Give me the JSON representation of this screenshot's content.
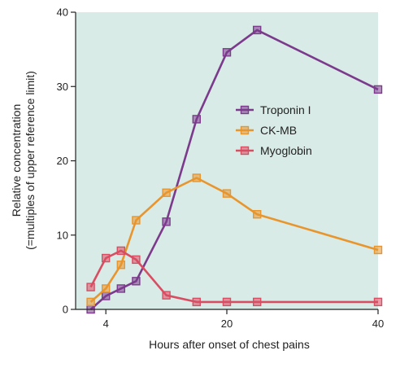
{
  "chart_data": {
    "type": "line",
    "xlabel": "Hours after onset of chest pains",
    "ylabel_line1": "Relative concentration",
    "ylabel_line2": "(=multiples of upper reference limit)",
    "x_ticks": [
      4,
      20,
      40
    ],
    "y_ticks": [
      0,
      10,
      20,
      30,
      40
    ],
    "xlim": [
      0,
      40
    ],
    "ylim": [
      0,
      40
    ],
    "background": "#d9ebe6",
    "legend_position": "center-right",
    "series": [
      {
        "name": "Troponin I",
        "color": "#7b3a8c",
        "points": [
          [
            2,
            0
          ],
          [
            4,
            1.8
          ],
          [
            6,
            2.8
          ],
          [
            8,
            3.8
          ],
          [
            12,
            11.8
          ],
          [
            16,
            25.6
          ],
          [
            20,
            34.6
          ],
          [
            24,
            37.6
          ],
          [
            40,
            29.6
          ]
        ]
      },
      {
        "name": "CK-MB",
        "color": "#e8952e",
        "points": [
          [
            2,
            1
          ],
          [
            4,
            2.8
          ],
          [
            6,
            6
          ],
          [
            8,
            12
          ],
          [
            12,
            15.7
          ],
          [
            16,
            17.7
          ],
          [
            20,
            15.6
          ],
          [
            24,
            12.8
          ],
          [
            40,
            8
          ]
        ]
      },
      {
        "name": "Myoglobin",
        "color": "#d94d63",
        "points": [
          [
            2,
            3
          ],
          [
            4,
            6.9
          ],
          [
            6,
            7.9
          ],
          [
            8,
            6.7
          ],
          [
            12,
            1.9
          ],
          [
            16,
            1
          ],
          [
            20,
            1
          ],
          [
            24,
            1
          ],
          [
            40,
            1
          ]
        ]
      }
    ]
  }
}
